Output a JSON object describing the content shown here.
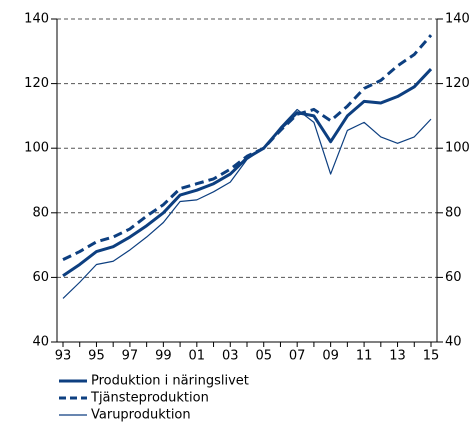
{
  "chart_data": {
    "type": "line",
    "categories": [
      "93",
      null,
      "95",
      null,
      "97",
      null,
      "99",
      null,
      "01",
      null,
      "03",
      null,
      "05",
      null,
      "07",
      null,
      "09",
      null,
      "11",
      null,
      "13",
      null,
      "15"
    ],
    "series": [
      {
        "name": "Produktion i näringslivet",
        "color": "#0d3f80",
        "line_style": "solid",
        "line_width": 3,
        "values": [
          60.5,
          64,
          68,
          69.5,
          72.5,
          76,
          80,
          85.5,
          87,
          89,
          92,
          97,
          100,
          106,
          111,
          110,
          102,
          110,
          114.5,
          114,
          116,
          119,
          124.5
        ]
      },
      {
        "name": "Tjänsteproduktion",
        "color": "#0d3f80",
        "line_style": "dashed",
        "line_width": 3,
        "values": [
          65.5,
          68,
          71,
          72.5,
          75,
          79,
          82.5,
          87.5,
          89,
          90.5,
          93.5,
          97.5,
          100,
          105.5,
          110.5,
          112,
          108.5,
          113,
          118.5,
          121,
          125.5,
          129,
          135
        ]
      },
      {
        "name": "Varuproduktion",
        "color": "#0d3f80",
        "line_style": "solid",
        "line_width": 1.2,
        "values": [
          53.5,
          58.5,
          64,
          65,
          68.5,
          72.5,
          77,
          83.5,
          84,
          86.5,
          89.5,
          96.5,
          100,
          106.5,
          112,
          108,
          92,
          105.5,
          108,
          103.5,
          101.5,
          103.5,
          109
        ]
      }
    ],
    "ylim": [
      40,
      140
    ],
    "yticks": [
      40,
      60,
      80,
      100,
      120,
      140
    ],
    "y2lim": [
      40,
      140
    ],
    "y2ticks": [
      40,
      60,
      80,
      100,
      120,
      140
    ],
    "grid": true,
    "legend": "bottom"
  }
}
